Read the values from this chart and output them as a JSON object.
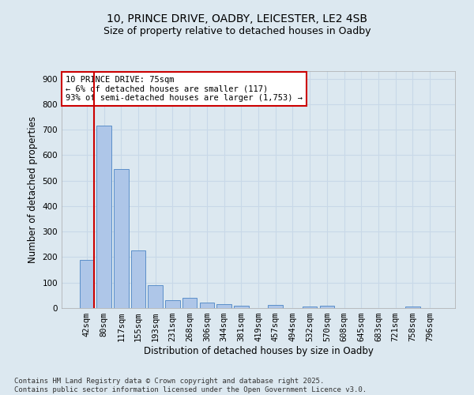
{
  "title_line1": "10, PRINCE DRIVE, OADBY, LEICESTER, LE2 4SB",
  "title_line2": "Size of property relative to detached houses in Oadby",
  "xlabel": "Distribution of detached houses by size in Oadby",
  "ylabel": "Number of detached properties",
  "bar_labels": [
    "42sqm",
    "80sqm",
    "117sqm",
    "155sqm",
    "193sqm",
    "231sqm",
    "268sqm",
    "306sqm",
    "344sqm",
    "381sqm",
    "419sqm",
    "457sqm",
    "494sqm",
    "532sqm",
    "570sqm",
    "608sqm",
    "645sqm",
    "683sqm",
    "721sqm",
    "758sqm",
    "796sqm"
  ],
  "bar_values": [
    190,
    715,
    545,
    225,
    90,
    30,
    40,
    23,
    15,
    10,
    0,
    13,
    0,
    7,
    8,
    0,
    0,
    0,
    0,
    7,
    0
  ],
  "bar_color": "#aec6e8",
  "bar_edge_color": "#5b8fc9",
  "vline_color": "#cc0000",
  "annotation_text": "10 PRINCE DRIVE: 75sqm\n← 6% of detached houses are smaller (117)\n93% of semi-detached houses are larger (1,753) →",
  "annotation_box_color": "#ffffff",
  "annotation_box_edge": "#cc0000",
  "ylim": [
    0,
    930
  ],
  "yticks": [
    0,
    100,
    200,
    300,
    400,
    500,
    600,
    700,
    800,
    900
  ],
  "grid_color": "#c8d8e8",
  "background_color": "#dce8f0",
  "footer_text": "Contains HM Land Registry data © Crown copyright and database right 2025.\nContains public sector information licensed under the Open Government Licence v3.0.",
  "title_fontsize": 10,
  "subtitle_fontsize": 9,
  "axis_label_fontsize": 8.5,
  "tick_fontsize": 7.5,
  "footer_fontsize": 6.5
}
